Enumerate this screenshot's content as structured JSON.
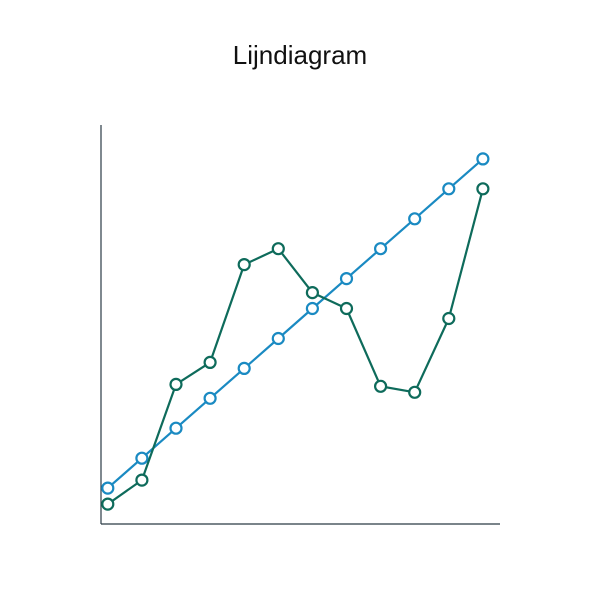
{
  "chart_data": {
    "type": "line",
    "title": "Lijndiagram",
    "x": [
      1,
      2,
      3,
      4,
      5,
      6,
      7,
      8,
      9,
      10,
      11,
      12
    ],
    "xlim": [
      0.8,
      12.5
    ],
    "ylim": [
      0,
      100
    ],
    "grid": false,
    "legend": "none",
    "series": [
      {
        "color": "#1a8ac2",
        "values": [
          9,
          16.5,
          24,
          31.5,
          39,
          46.5,
          54,
          61.5,
          69,
          76.5,
          84,
          91.5
        ]
      },
      {
        "color": "#0e6b5b",
        "values": [
          5,
          11,
          35,
          40.5,
          65,
          69,
          58,
          54,
          34.5,
          33,
          51.5,
          84
        ]
      }
    ]
  }
}
